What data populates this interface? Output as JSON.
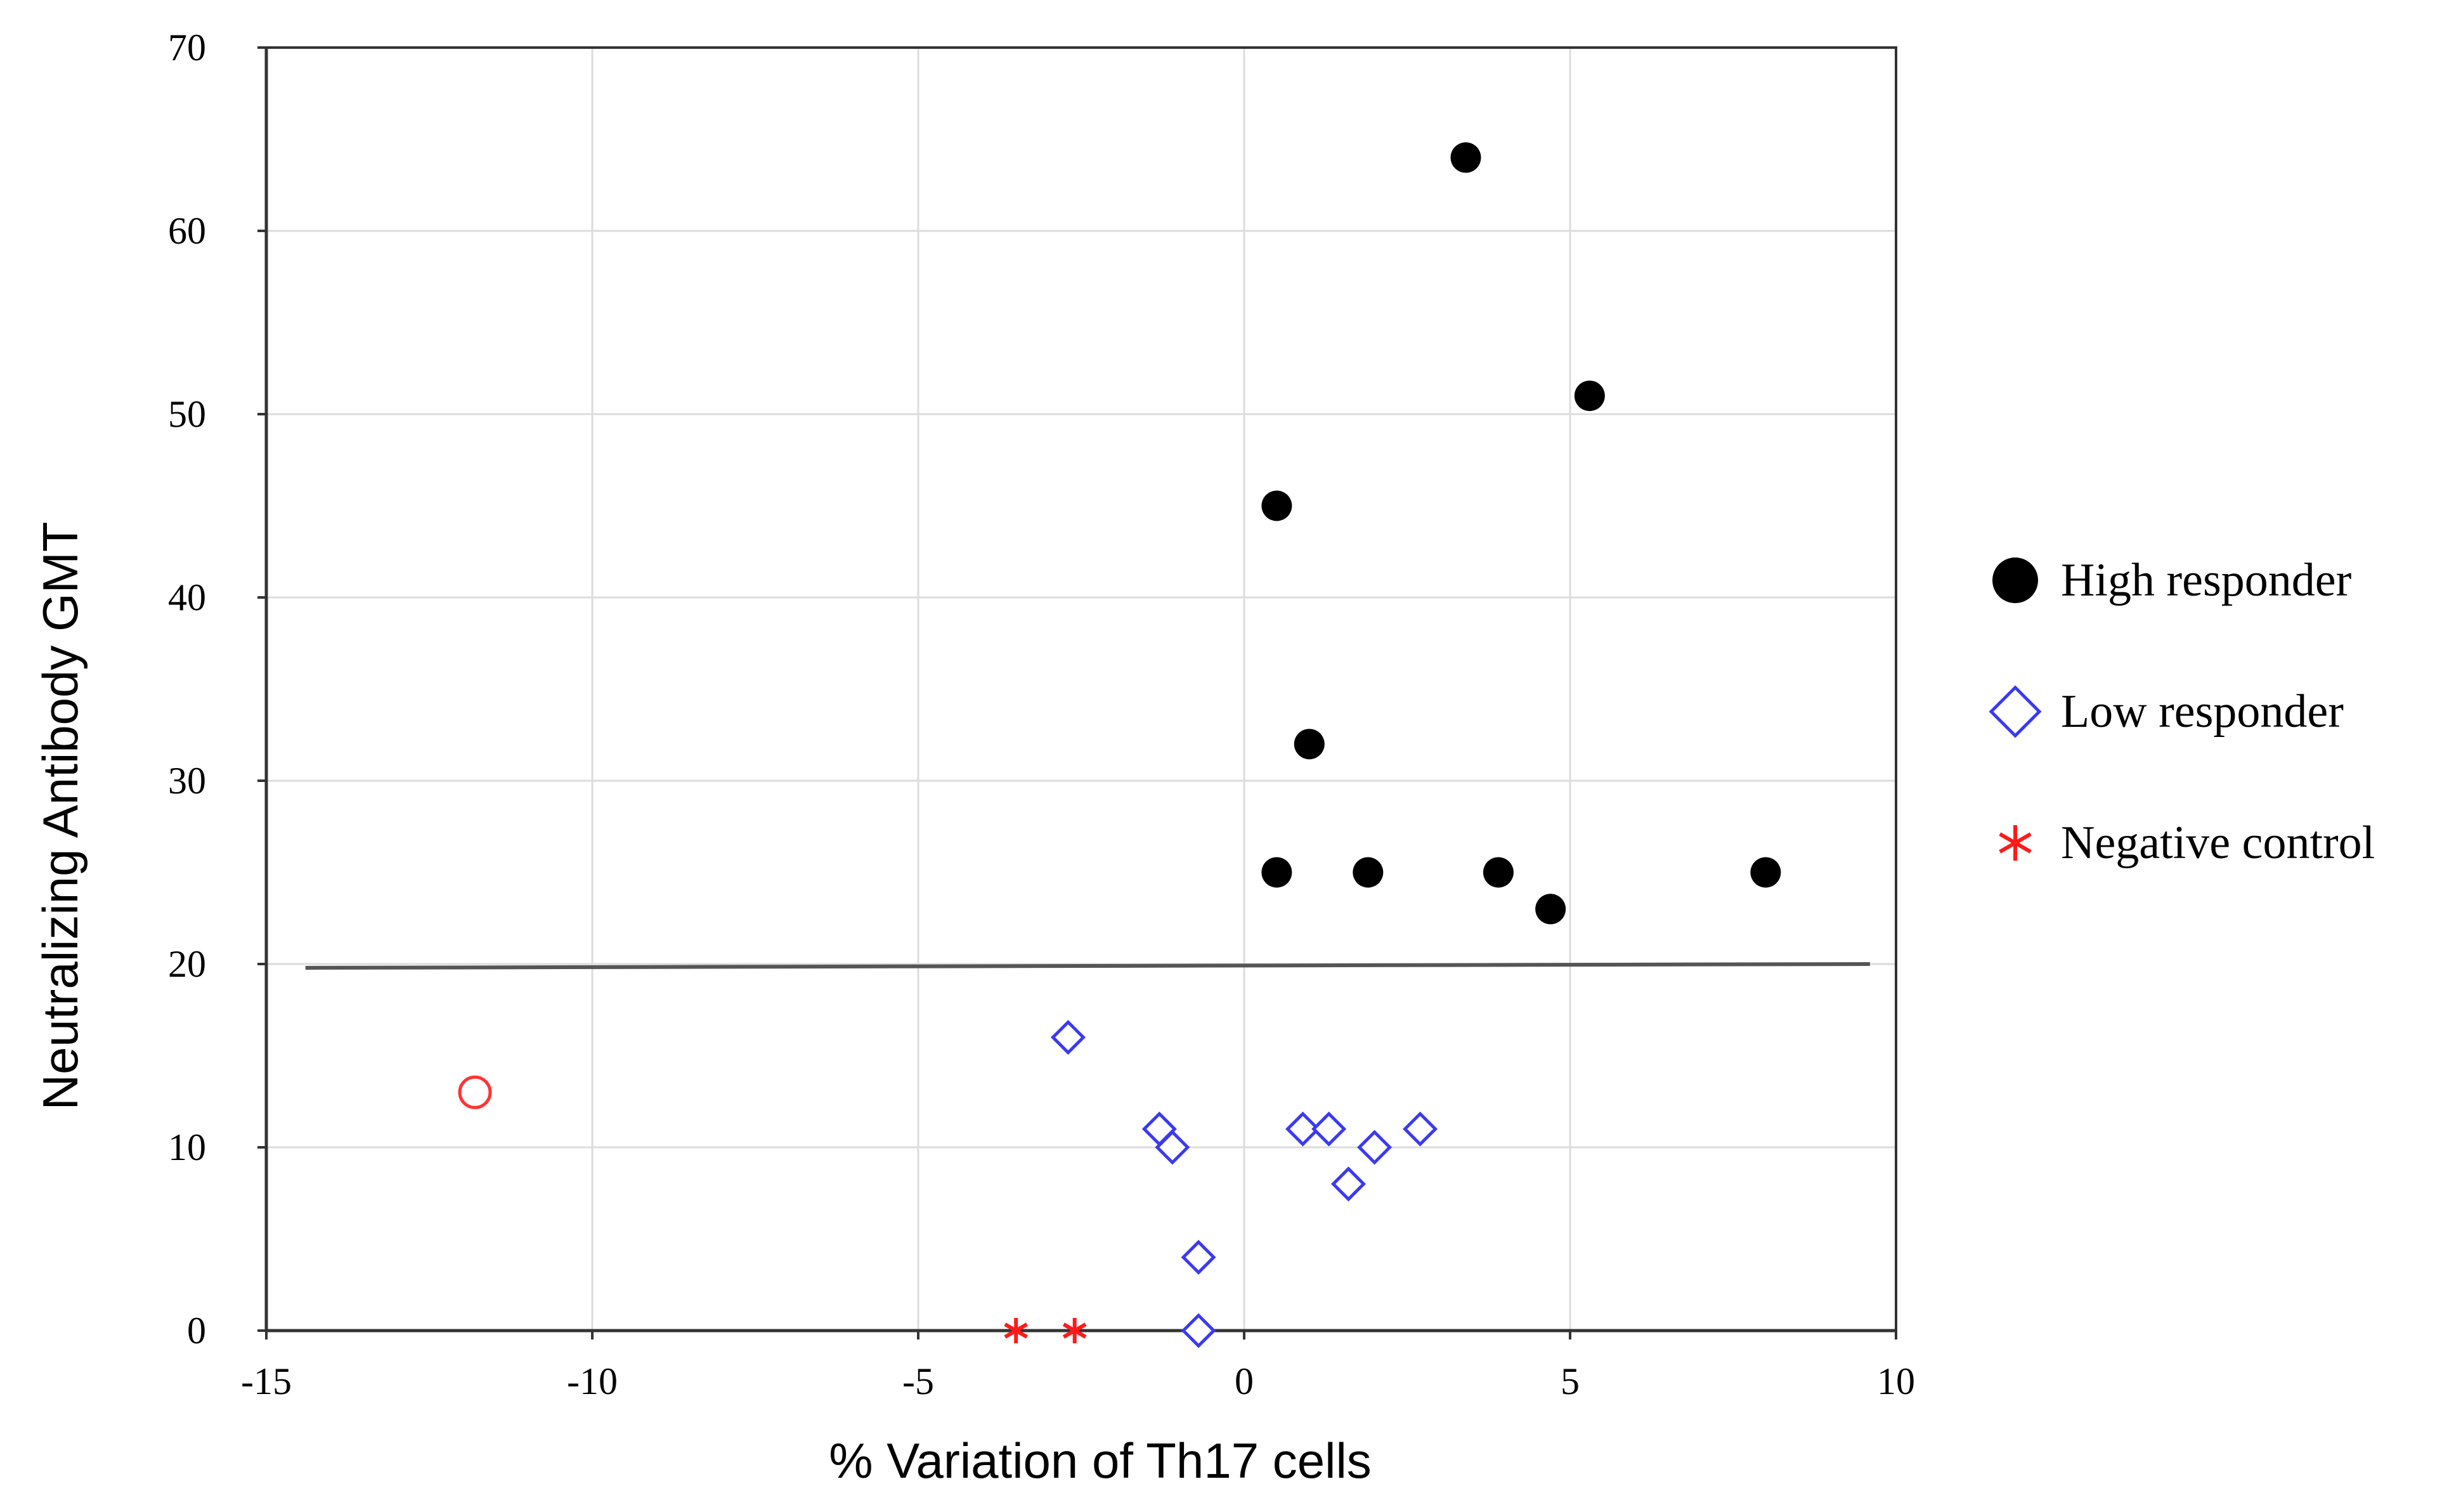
{
  "chart_data": {
    "type": "scatter",
    "title": "",
    "xlabel": "% Variation of Th17 cells",
    "ylabel": "Neutralizing Antibody GMT",
    "xlim": [
      -15,
      10
    ],
    "ylim": [
      0,
      70
    ],
    "x_ticks": [
      -15,
      -10,
      -5,
      0,
      5,
      10
    ],
    "y_ticks": [
      0,
      10,
      20,
      30,
      40,
      50,
      60,
      70
    ],
    "grid": true,
    "legend_position": "right",
    "threshold_line": {
      "y": 20,
      "x_range": [
        -14.4,
        9.6
      ]
    },
    "series": [
      {
        "name": "High responder",
        "marker": "filled-circle",
        "color": "#000000",
        "points": [
          {
            "x": 3.4,
            "y": 64
          },
          {
            "x": 5.3,
            "y": 51
          },
          {
            "x": 0.5,
            "y": 45
          },
          {
            "x": 1.0,
            "y": 32
          },
          {
            "x": 0.5,
            "y": 25
          },
          {
            "x": 1.9,
            "y": 25
          },
          {
            "x": 3.9,
            "y": 25
          },
          {
            "x": 4.7,
            "y": 23
          },
          {
            "x": 8.0,
            "y": 25
          }
        ]
      },
      {
        "name": "Low responder",
        "marker": "open-diamond",
        "color": "#3a3af2",
        "points": [
          {
            "x": -2.7,
            "y": 16
          },
          {
            "x": -1.3,
            "y": 11
          },
          {
            "x": -1.1,
            "y": 10
          },
          {
            "x": 0.9,
            "y": 11
          },
          {
            "x": 1.3,
            "y": 11
          },
          {
            "x": 2.0,
            "y": 10
          },
          {
            "x": 1.6,
            "y": 8
          },
          {
            "x": 2.7,
            "y": 11
          },
          {
            "x": -0.7,
            "y": 4
          },
          {
            "x": -0.7,
            "y": 0
          }
        ]
      },
      {
        "name": "Negative control",
        "marker": "asterisk",
        "color": "#ff1a1a",
        "points": [
          {
            "x": -3.5,
            "y": 0
          },
          {
            "x": -2.6,
            "y": 0
          }
        ]
      }
    ],
    "unlabeled_points": [
      {
        "x": -11.8,
        "y": 13,
        "marker": "open-circle",
        "color": "#ff3333"
      }
    ]
  }
}
